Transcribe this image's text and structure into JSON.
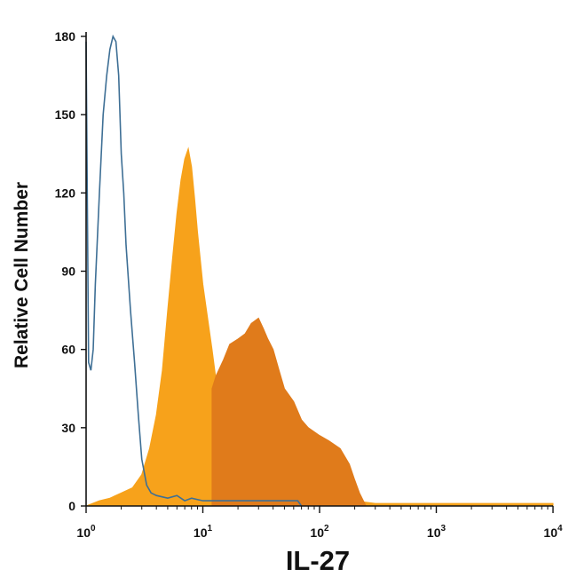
{
  "chart_data": {
    "type": "area",
    "title": "",
    "xlabel": "IL-27",
    "ylabel": "Relative Cell Number",
    "xscale": "log",
    "xlim": [
      1,
      10000
    ],
    "ylim": [
      0,
      180
    ],
    "x_ticks": [
      {
        "value": 1,
        "base": "10",
        "exp": "0"
      },
      {
        "value": 10,
        "base": "10",
        "exp": "1"
      },
      {
        "value": 100,
        "base": "10",
        "exp": "2"
      },
      {
        "value": 1000,
        "base": "10",
        "exp": "3"
      },
      {
        "value": 10000,
        "base": "10",
        "exp": "4"
      }
    ],
    "y_ticks": [
      0,
      30,
      60,
      90,
      120,
      150,
      180
    ],
    "grid": false,
    "legend": "none",
    "series": [
      {
        "style": "filled",
        "color": "#F7A21B",
        "x": [
          1,
          1.3,
          1.6,
          2,
          2.5,
          3,
          3.5,
          4,
          4.5,
          5,
          5.5,
          6,
          6.5,
          7,
          7.5,
          8,
          8.5,
          9,
          10,
          11,
          12,
          13,
          15,
          17,
          20,
          25,
          30,
          40,
          50,
          70,
          100,
          150,
          200,
          300,
          500,
          1000,
          3000,
          10000
        ],
        "y": [
          0,
          2,
          3,
          5,
          7,
          12,
          22,
          35,
          52,
          75,
          95,
          112,
          125,
          133,
          137,
          130,
          118,
          105,
          85,
          72,
          60,
          48,
          40,
          34,
          30,
          25,
          20,
          15,
          10,
          7,
          5,
          3,
          2,
          1,
          1,
          1,
          1,
          1
        ]
      },
      {
        "style": "filled",
        "color": "#E07B1B",
        "x": [
          12,
          13,
          15,
          17,
          20,
          23,
          26,
          30,
          33,
          36,
          40,
          45,
          50,
          60,
          70,
          80,
          100,
          120,
          150,
          180,
          200,
          220,
          250
        ],
        "y": [
          45,
          50,
          56,
          62,
          64,
          66,
          70,
          72,
          68,
          64,
          60,
          52,
          45,
          40,
          33,
          30,
          27,
          25,
          22,
          16,
          10,
          5,
          0
        ]
      },
      {
        "style": "outline",
        "color": "#3E6F95",
        "x": [
          1,
          1.05,
          1.1,
          1.15,
          1.2,
          1.3,
          1.4,
          1.5,
          1.6,
          1.7,
          1.8,
          1.9,
          2,
          2.1,
          2.2,
          2.4,
          2.6,
          2.8,
          3,
          3.3,
          3.6,
          4,
          5,
          6,
          7,
          8,
          10,
          15,
          20,
          30,
          50,
          65,
          70
        ],
        "y": [
          178,
          55,
          52,
          60,
          85,
          120,
          150,
          165,
          175,
          180,
          178,
          165,
          135,
          120,
          100,
          75,
          55,
          35,
          18,
          8,
          5,
          4,
          3,
          4,
          2,
          3,
          2,
          2,
          2,
          2,
          2,
          2,
          0
        ]
      }
    ]
  }
}
